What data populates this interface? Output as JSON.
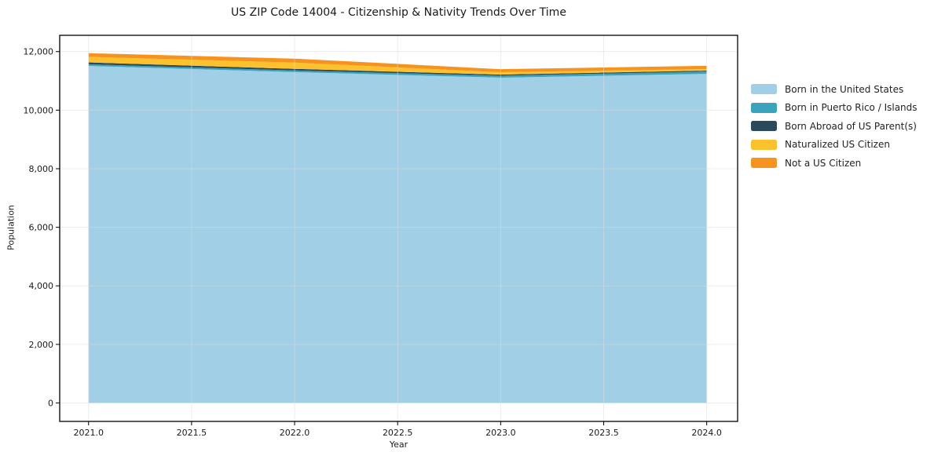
{
  "title": "US ZIP Code 14004 - Citizenship & Nativity Trends Over Time",
  "chart_data": {
    "type": "area",
    "stacked": true,
    "title": "US ZIP Code 14004 - Citizenship & Nativity Trends Over Time",
    "xlabel": "Year",
    "ylabel": "Population",
    "x": [
      2021,
      2022,
      2023,
      2024
    ],
    "series": [
      {
        "name": "Born in the United States",
        "color": "#a1cfe5",
        "values": [
          11510,
          11300,
          11110,
          11240
        ]
      },
      {
        "name": "Born in Puerto Rico / Islands",
        "color": "#3ba4bd",
        "values": [
          55,
          55,
          65,
          80
        ]
      },
      {
        "name": "Born Abroad of US Parent(s)",
        "color": "#2a4a5c",
        "values": [
          65,
          55,
          40,
          30
        ]
      },
      {
        "name": "Naturalized US Citizen",
        "color": "#fcc22d",
        "values": [
          190,
          215,
          80,
          55
        ]
      },
      {
        "name": "Not a US Citizen",
        "color": "#f6921e",
        "values": [
          125,
          135,
          105,
          110
        ]
      }
    ],
    "xlim": [
      2020.86,
      2024.15
    ],
    "ylim": [
      -630,
      12556
    ],
    "xticks": [
      2021.0,
      2021.5,
      2022.0,
      2022.5,
      2023.0,
      2023.5,
      2024.0
    ],
    "xtick_labels": [
      "2021.0",
      "2021.5",
      "2022.0",
      "2022.5",
      "2023.0",
      "2023.5",
      "2024.0"
    ],
    "yticks": [
      0,
      2000,
      4000,
      6000,
      8000,
      10000,
      12000
    ],
    "ytick_labels": [
      "0",
      "2,000",
      "4,000",
      "6,000",
      "8,000",
      "10,000",
      "12,000"
    ],
    "grid": true,
    "grid_color": "#dcdcdc",
    "spine_color": "#000000",
    "text_color": "#1a1a1a",
    "legend_position": "right-outside"
  }
}
